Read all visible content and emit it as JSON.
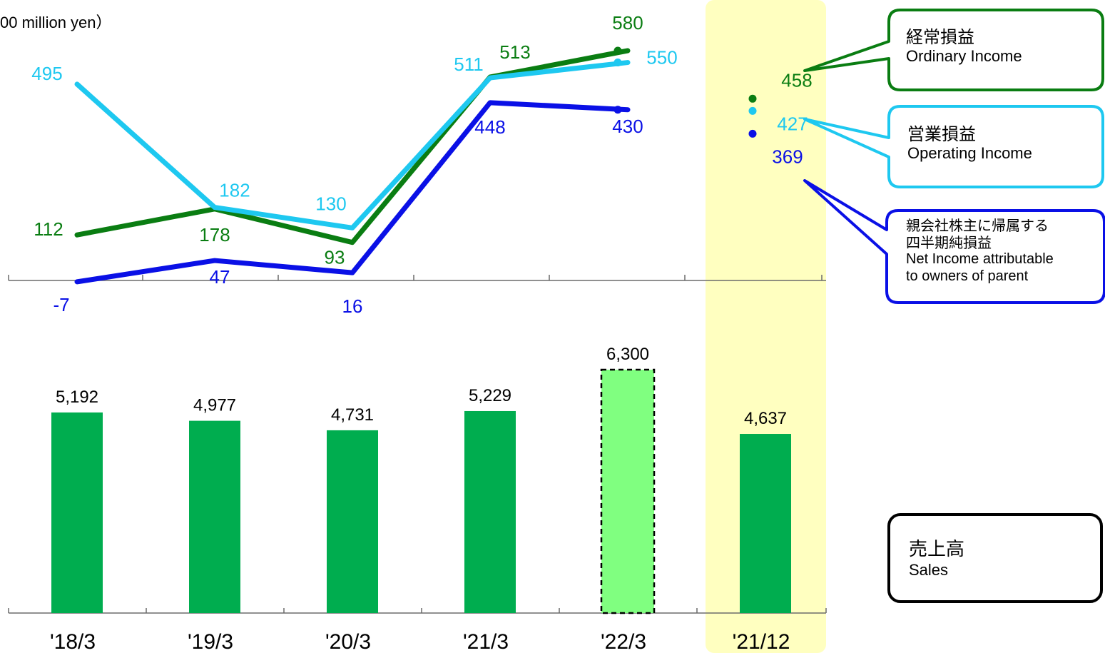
{
  "unit_label": "00 million yen）",
  "colors": {
    "ordinary": "#0a7d12",
    "operating": "#1ec8f0",
    "net": "#0a10e6",
    "bar": "#00ad4f",
    "bar_forecast": "#80ff80",
    "highlight": "#ffffc0",
    "axis": "#6b6b6b"
  },
  "legends": {
    "ordinary": {
      "jp": "経常損益",
      "en": "Ordinary Income"
    },
    "operating": {
      "jp": "営業損益",
      "en": "Operating Income"
    },
    "net": {
      "jp1": "親会社株主に帰属する",
      "jp2": "四半期純損益",
      "en1": "Net Income attributable",
      "en2": "to owners of parent"
    },
    "sales": {
      "jp": "売上高",
      "en": "Sales"
    }
  },
  "chart_data": [
    {
      "type": "line",
      "categories": [
        "'18/3",
        "'19/3",
        "'20/3",
        "'21/3",
        "'22/3",
        "'21/12"
      ],
      "series": [
        {
          "name": "経常損益 Ordinary Income",
          "color_key": "ordinary",
          "values": [
            112,
            178,
            93,
            513,
            580,
            458
          ],
          "labels": [
            "112",
            "178",
            "93",
            "513",
            "580",
            "458"
          ]
        },
        {
          "name": "営業損益 Operating Income",
          "color_key": "operating",
          "values": [
            495,
            182,
            130,
            511,
            550,
            427
          ],
          "labels": [
            "495",
            "182",
            "130",
            "511",
            "550",
            "427"
          ]
        },
        {
          "name": "親会社株主に帰属する四半期純損益 Net Income attributable to owners of parent",
          "color_key": "net",
          "values": [
            -7,
            47,
            16,
            448,
            430,
            369
          ],
          "labels": [
            "-7",
            "47",
            "16",
            "448",
            "430",
            "369"
          ]
        }
      ],
      "connected_through": "'22/3",
      "standalone_points": "'21/12"
    },
    {
      "type": "bar",
      "categories": [
        "'18/3",
        "'19/3",
        "'20/3",
        "'21/3",
        "'22/3",
        "'21/12"
      ],
      "series": [
        {
          "name": "売上高 Sales",
          "values": [
            5192,
            4977,
            4731,
            5229,
            6300,
            4637
          ],
          "labels": [
            "5,192",
            "4,977",
            "4,731",
            "5,229",
            "6,300",
            "4,637"
          ]
        }
      ],
      "forecast_category": "'22/3",
      "highlighted_category": "'21/12"
    }
  ]
}
